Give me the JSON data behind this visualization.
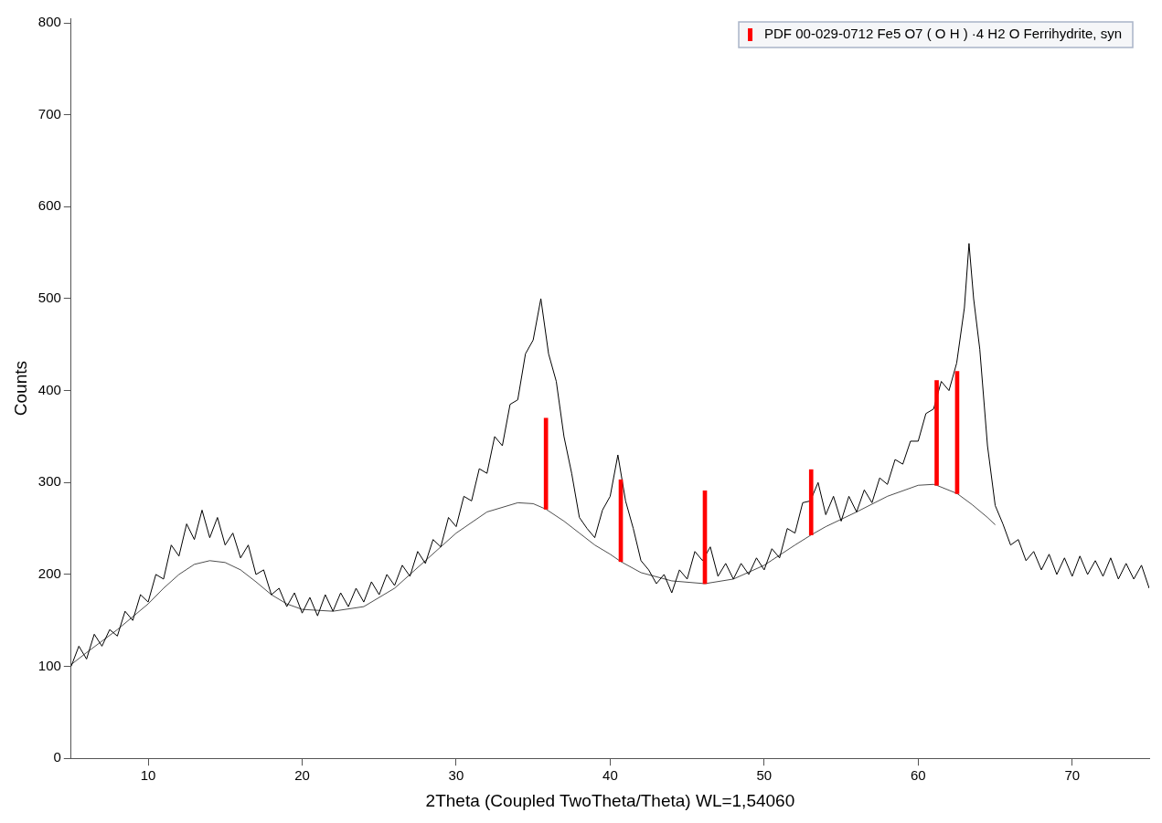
{
  "chart_data": {
    "type": "line",
    "xlabel": "2Theta (Coupled TwoTheta/Theta) WL=1,54060",
    "ylabel": "Counts",
    "xlim": [
      5,
      75
    ],
    "ylim": [
      0,
      805
    ],
    "xticks": [
      10,
      20,
      30,
      40,
      50,
      60,
      70
    ],
    "yticks": [
      0,
      100,
      200,
      300,
      400,
      500,
      600,
      700,
      800
    ],
    "grid": false,
    "legend": "top right",
    "marker": "none",
    "line_style": "solid",
    "series": [
      {
        "color": "#000000",
        "x": [
          5,
          5.5,
          6,
          6.5,
          7,
          7.5,
          8,
          8.5,
          9,
          9.5,
          10,
          10.5,
          11,
          11.5,
          12,
          12.5,
          13,
          13.5,
          14,
          14.5,
          15,
          15.5,
          16,
          16.5,
          17,
          17.5,
          18,
          18.5,
          19,
          19.5,
          20,
          20.5,
          21,
          21.5,
          22,
          22.5,
          23,
          23.5,
          24,
          24.5,
          25,
          25.5,
          26,
          26.5,
          27,
          27.5,
          28,
          28.5,
          29,
          29.5,
          30,
          30.5,
          31,
          31.5,
          32,
          32.5,
          33,
          33.5,
          34,
          34.5,
          35,
          35.5,
          36,
          36.5,
          37,
          37.5,
          38,
          38.5,
          39,
          39.5,
          40,
          40.5,
          41,
          41.5,
          42,
          42.5,
          43,
          43.5,
          44,
          44.5,
          45,
          45.5,
          46,
          46.5,
          47,
          47.5,
          48,
          48.5,
          49,
          49.5,
          50,
          50.5,
          51,
          51.5,
          52,
          52.5,
          53,
          53.5,
          54,
          54.5,
          55,
          55.5,
          56,
          56.5,
          57,
          57.5,
          58,
          58.5,
          59,
          59.5,
          60,
          60.5,
          61,
          61.5,
          62,
          62.5,
          63,
          63.3,
          63.6,
          64,
          64.5,
          65,
          65.5,
          66,
          66.5,
          67,
          67.5,
          68,
          68.5,
          69,
          69.5,
          70,
          70.5,
          71,
          71.5,
          72,
          72.5,
          73,
          73.5,
          74,
          74.5,
          75
        ],
        "values": [
          100,
          122,
          108,
          135,
          122,
          140,
          133,
          160,
          150,
          178,
          170,
          200,
          195,
          232,
          220,
          255,
          238,
          270,
          240,
          262,
          232,
          245,
          218,
          232,
          200,
          205,
          178,
          185,
          165,
          180,
          158,
          175,
          155,
          178,
          160,
          180,
          165,
          185,
          170,
          192,
          178,
          200,
          188,
          210,
          198,
          225,
          212,
          238,
          230,
          262,
          252,
          285,
          280,
          315,
          310,
          350,
          340,
          385,
          390,
          440,
          455,
          500,
          440,
          410,
          350,
          310,
          262,
          250,
          240,
          270,
          285,
          330,
          280,
          250,
          215,
          205,
          190,
          200,
          180,
          205,
          195,
          225,
          215,
          230,
          198,
          212,
          195,
          212,
          200,
          218,
          205,
          228,
          218,
          250,
          245,
          278,
          280,
          300,
          265,
          285,
          258,
          285,
          268,
          292,
          278,
          305,
          298,
          325,
          320,
          345,
          345,
          375,
          380,
          410,
          400,
          430,
          490,
          560,
          500,
          445,
          340,
          275,
          255,
          232,
          238,
          215,
          225,
          205,
          222,
          200,
          218,
          198,
          220,
          200,
          215,
          198,
          218,
          195,
          212,
          195,
          210,
          185
        ]
      },
      {
        "color": "#000000",
        "x": [
          5,
          6,
          8,
          10,
          11,
          12,
          13,
          14,
          15,
          16,
          17,
          18,
          19,
          20,
          22,
          24,
          26,
          28,
          30,
          32,
          34,
          35,
          35.83,
          37,
          38,
          39,
          40,
          40.69,
          42,
          44,
          46.15,
          48,
          50,
          52,
          53.05,
          54,
          56,
          58,
          60,
          61,
          61.2,
          62.53,
          63.5,
          64.5,
          65
        ],
        "values": [
          102,
          115,
          140,
          168,
          185,
          200,
          211,
          215,
          213,
          205,
          192,
          178,
          168,
          162,
          160,
          165,
          185,
          215,
          245,
          268,
          278,
          277,
          271,
          258,
          245,
          232,
          222,
          214,
          202,
          193,
          190,
          195,
          210,
          232,
          243,
          252,
          268,
          285,
          297,
          298,
          297,
          288,
          276,
          262,
          254
        ]
      },
      {
        "type": "bar",
        "name": "PDF 00-029-0712 Fe5 O7 ( O H ) ·4 H2 O Ferrihydrite, syn",
        "color": "#ff0000",
        "x": [
          35.83,
          40.69,
          46.15,
          53.05,
          61.2,
          62.53
        ],
        "base": [
          271,
          214,
          190,
          243,
          297,
          288
        ],
        "values": [
          99,
          89,
          101,
          71,
          114,
          133
        ]
      }
    ]
  }
}
